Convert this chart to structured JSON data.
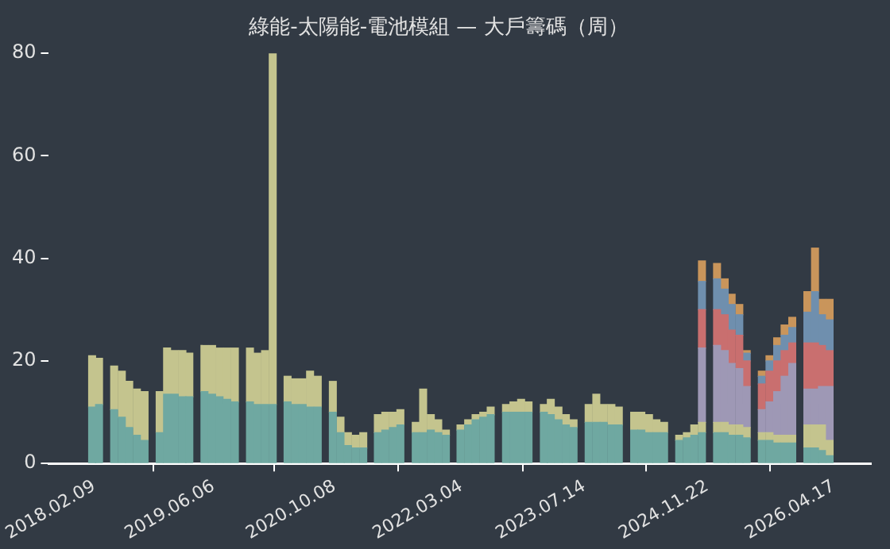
{
  "chart_data": {
    "type": "bar",
    "title": "綠能-太陽能-電池模組 — 大戶籌碼（周）",
    "stacked": true,
    "grid": false,
    "legend": false,
    "x": [
      "2018-02",
      "2018-03",
      "2018-04",
      "2018-05",
      "2018-06",
      "2018-07",
      "2018-08",
      "2018-09",
      "2018-10",
      "2018-11",
      "2018-12",
      "2019-01",
      "2019-02",
      "2019-03",
      "2019-04",
      "2019-05",
      "2019-06",
      "2019-07",
      "2019-08",
      "2019-09",
      "2019-10",
      "2019-11",
      "2019-12",
      "2020-01",
      "2020-02",
      "2020-03",
      "2020-04",
      "2020-05",
      "2020-06",
      "2020-07",
      "2020-08",
      "2020-09",
      "2020-10",
      "2020-11",
      "2020-12",
      "2021-01",
      "2021-02",
      "2021-03",
      "2021-04",
      "2021-05",
      "2021-06",
      "2021-07",
      "2021-08",
      "2021-09",
      "2021-10",
      "2021-11",
      "2021-12",
      "2022-01",
      "2022-02",
      "2022-03",
      "2022-04",
      "2022-05",
      "2022-06",
      "2022-07",
      "2022-08",
      "2022-09",
      "2022-10",
      "2022-11",
      "2022-12",
      "2023-01",
      "2023-02",
      "2023-03",
      "2023-04",
      "2023-05",
      "2023-06",
      "2023-07",
      "2023-08",
      "2023-09",
      "2023-10",
      "2023-11",
      "2023-12",
      "2024-01",
      "2024-02",
      "2024-03",
      "2024-04",
      "2024-05",
      "2024-06",
      "2024-07",
      "2024-08",
      "2024-09",
      "2024-10",
      "2024-11",
      "2024-12",
      "2025-01",
      "2025-02",
      "2025-03",
      "2025-04",
      "2025-05",
      "2025-06",
      "2025-07",
      "2025-08",
      "2025-09",
      "2025-10",
      "2025-11",
      "2025-12",
      "2026-01",
      "2026-02",
      "2026-03",
      "2026-04"
    ],
    "xlim": [
      "2017-08-10",
      "2026-09-15"
    ],
    "xticks": [
      {
        "value": "2018-02-09",
        "label": "2018.02.09"
      },
      {
        "value": "2019-06-06",
        "label": "2019.06.06"
      },
      {
        "value": "2020-10-08",
        "label": "2020.10.08"
      },
      {
        "value": "2022-03-04",
        "label": "2022.03.04"
      },
      {
        "value": "2023-07-14",
        "label": "2023.07.14"
      },
      {
        "value": "2024-11-22",
        "label": "2024.11.22"
      },
      {
        "value": "2026-04-17",
        "label": "2026.04.17"
      }
    ],
    "ylim": [
      0,
      80
    ],
    "yticks": [
      0,
      20,
      40,
      60,
      80
    ],
    "series": [
      {
        "color": "#6fa8a1",
        "values": [
          11,
          11.5,
          null,
          10.5,
          9,
          7,
          5.5,
          4.5,
          null,
          6,
          13.5,
          13.5,
          13,
          13,
          null,
          14,
          13.5,
          13,
          12.5,
          12,
          null,
          12,
          11.5,
          11.5,
          11.5,
          null,
          12,
          11.5,
          11.5,
          11,
          11,
          null,
          10,
          6,
          3.5,
          3,
          3,
          null,
          6,
          6.5,
          7,
          7.5,
          null,
          6,
          6,
          6.5,
          6,
          5.5,
          null,
          6.5,
          7.5,
          8.5,
          9,
          9.5,
          null,
          10,
          10,
          10,
          10,
          null,
          10,
          9.5,
          8.5,
          7.5,
          7,
          null,
          8,
          8,
          8,
          7.5,
          7.5,
          null,
          6.5,
          6.5,
          6,
          6,
          6,
          null,
          4.5,
          5,
          5.5,
          6,
          null,
          6,
          6,
          5.5,
          5.5,
          5,
          null,
          4.5,
          4.5,
          4,
          4,
          4,
          null,
          3,
          3,
          2.5,
          1.5
        ]
      },
      {
        "color": "#c4c48e",
        "values": [
          10,
          9,
          null,
          8.5,
          9,
          9,
          9,
          9.5,
          null,
          8,
          9,
          8.5,
          9,
          8.5,
          null,
          9,
          9.5,
          9.5,
          10,
          10.5,
          null,
          10.5,
          10,
          10.5,
          68.5,
          null,
          5,
          5,
          5,
          7,
          6,
          null,
          6,
          3,
          2.5,
          2.5,
          3,
          null,
          3.5,
          3.5,
          3,
          3,
          null,
          2,
          8.5,
          3,
          2.5,
          1,
          null,
          1,
          1,
          1,
          1,
          1.5,
          null,
          1.5,
          2,
          2.5,
          2,
          null,
          1.5,
          3,
          2.5,
          2,
          1.5,
          null,
          3.5,
          5.5,
          3.5,
          4,
          3.5,
          null,
          3.5,
          3.5,
          3.5,
          2.5,
          2,
          null,
          1,
          1,
          2,
          2,
          null,
          2,
          2,
          2,
          2,
          2,
          null,
          1.5,
          1.5,
          1.5,
          1.5,
          1.5,
          null,
          4.5,
          4.5,
          5,
          3
        ]
      },
      {
        "color": "#9e98b5",
        "values": [
          null,
          null,
          null,
          null,
          null,
          null,
          null,
          null,
          null,
          null,
          null,
          null,
          null,
          null,
          null,
          null,
          null,
          null,
          null,
          null,
          null,
          null,
          null,
          null,
          null,
          null,
          null,
          null,
          null,
          null,
          null,
          null,
          null,
          null,
          null,
          null,
          null,
          null,
          null,
          null,
          null,
          null,
          null,
          null,
          null,
          null,
          null,
          null,
          null,
          null,
          null,
          null,
          null,
          null,
          null,
          null,
          null,
          null,
          null,
          null,
          null,
          null,
          null,
          null,
          null,
          null,
          null,
          null,
          null,
          null,
          null,
          null,
          null,
          null,
          null,
          null,
          null,
          null,
          null,
          null,
          null,
          14.5,
          null,
          15,
          14,
          12,
          11,
          8,
          null,
          4.5,
          6,
          8.5,
          11.5,
          14,
          null,
          7,
          7,
          7.5,
          10.5
        ]
      },
      {
        "color": "#c96f6f",
        "values": [
          null,
          null,
          null,
          null,
          null,
          null,
          null,
          null,
          null,
          null,
          null,
          null,
          null,
          null,
          null,
          null,
          null,
          null,
          null,
          null,
          null,
          null,
          null,
          null,
          null,
          null,
          null,
          null,
          null,
          null,
          null,
          null,
          null,
          null,
          null,
          null,
          null,
          null,
          null,
          null,
          null,
          null,
          null,
          null,
          null,
          null,
          null,
          null,
          null,
          null,
          null,
          null,
          null,
          null,
          null,
          null,
          null,
          null,
          null,
          null,
          null,
          null,
          null,
          null,
          null,
          null,
          null,
          null,
          null,
          null,
          null,
          null,
          null,
          null,
          null,
          null,
          null,
          null,
          null,
          null,
          null,
          7.5,
          null,
          7,
          7,
          6.5,
          6.5,
          5,
          null,
          5,
          6,
          6,
          5,
          4,
          null,
          9,
          9,
          8,
          7
        ]
      },
      {
        "color": "#6f8fae",
        "values": [
          null,
          null,
          null,
          null,
          null,
          null,
          null,
          null,
          null,
          null,
          null,
          null,
          null,
          null,
          null,
          null,
          null,
          null,
          null,
          null,
          null,
          null,
          null,
          null,
          null,
          null,
          null,
          null,
          null,
          null,
          null,
          null,
          null,
          null,
          null,
          null,
          null,
          null,
          null,
          null,
          null,
          null,
          null,
          null,
          null,
          null,
          null,
          null,
          null,
          null,
          null,
          null,
          null,
          null,
          null,
          null,
          null,
          null,
          null,
          null,
          null,
          null,
          null,
          null,
          null,
          null,
          null,
          null,
          null,
          null,
          null,
          null,
          null,
          null,
          null,
          null,
          null,
          null,
          null,
          null,
          null,
          5.5,
          null,
          6,
          5,
          5,
          4,
          1.5,
          null,
          1.5,
          2,
          3,
          3,
          3,
          null,
          6,
          10,
          6,
          6
        ]
      },
      {
        "color": "#c9955b",
        "values": [
          null,
          null,
          null,
          null,
          null,
          null,
          null,
          null,
          null,
          null,
          null,
          null,
          null,
          null,
          null,
          null,
          null,
          null,
          null,
          null,
          null,
          null,
          null,
          null,
          null,
          null,
          null,
          null,
          null,
          null,
          null,
          null,
          null,
          null,
          null,
          null,
          null,
          null,
          null,
          null,
          null,
          null,
          null,
          null,
          null,
          null,
          null,
          null,
          null,
          null,
          null,
          null,
          null,
          null,
          null,
          null,
          null,
          null,
          null,
          null,
          null,
          null,
          null,
          null,
          null,
          null,
          null,
          null,
          null,
          null,
          null,
          null,
          null,
          null,
          null,
          null,
          null,
          null,
          null,
          null,
          null,
          4,
          null,
          3,
          2,
          2,
          2,
          0.5,
          null,
          1,
          1,
          1.5,
          2,
          2,
          null,
          4,
          8.5,
          3,
          4
        ]
      }
    ]
  }
}
